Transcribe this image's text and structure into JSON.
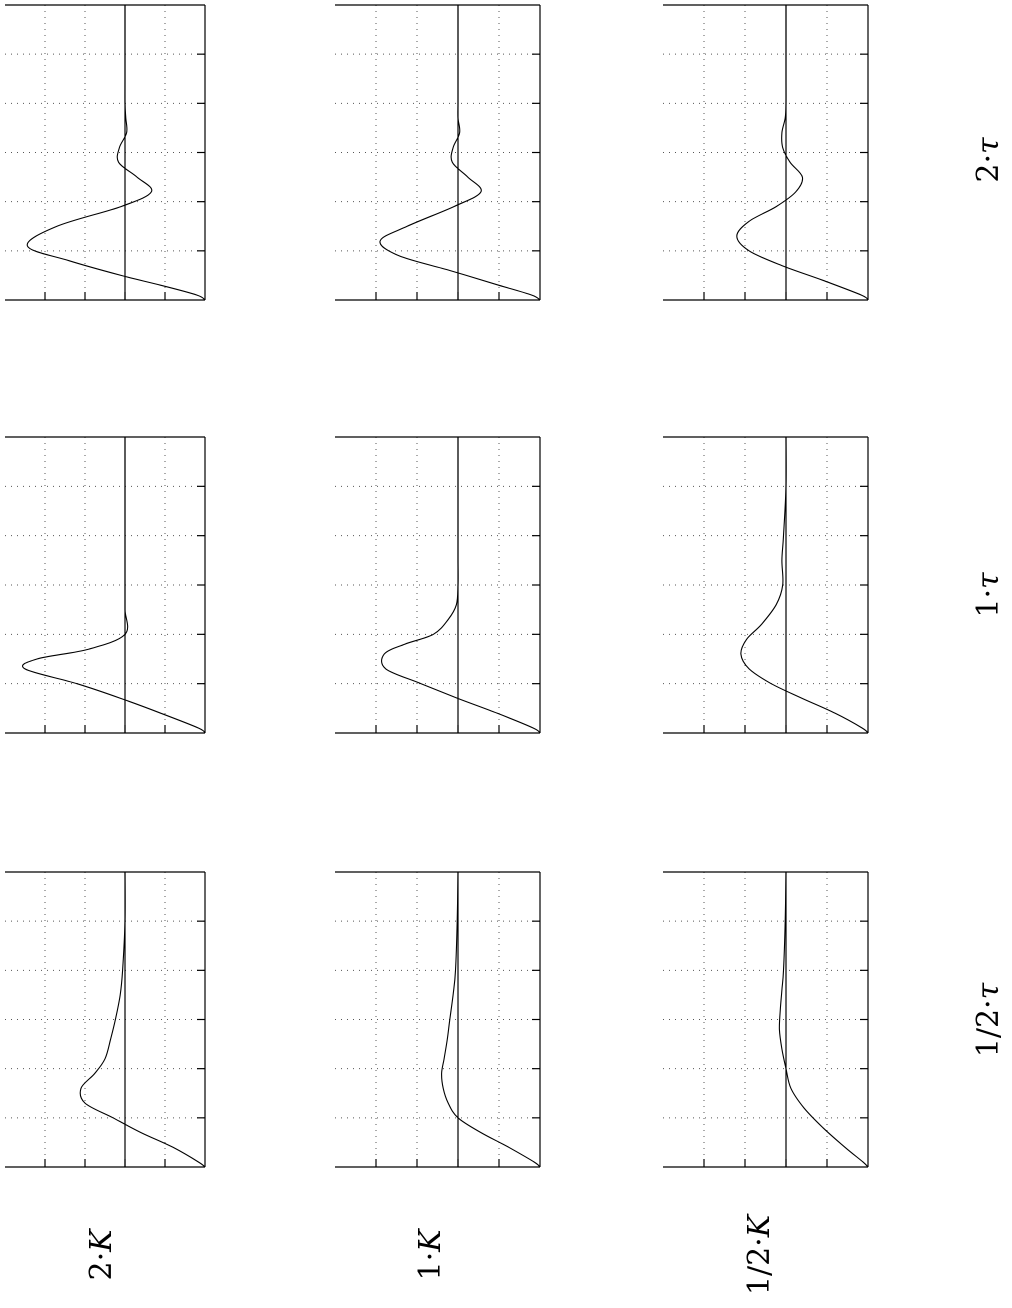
{
  "figure": {
    "row_labels": [
      {
        "num": "2",
        "sym": "K"
      },
      {
        "num": "1",
        "sym": "K"
      },
      {
        "num": "1/2",
        "sym": "K"
      }
    ],
    "col_labels": [
      {
        "num": "1/2",
        "sym": "τ"
      },
      {
        "num": "1",
        "sym": "τ"
      },
      {
        "num": "2",
        "sym": "τ"
      }
    ],
    "dot": "·"
  },
  "chart_data": [
    {
      "type": "line",
      "gain": "2·K",
      "time_constant": "1/2·τ",
      "ylim": [
        -1,
        1.5
      ],
      "xlim": [
        0,
        6
      ],
      "grid": true,
      "x": [
        0,
        0.1,
        0.3,
        0.5,
        0.8,
        1.1,
        1.5,
        1.9,
        2.2,
        2.5,
        2.8,
        3.1,
        3.4,
        3.7,
        4.0,
        4.5,
        5.0,
        5.5,
        6.0
      ],
      "y": [
        -1.0,
        -0.9,
        -0.45,
        0.05,
        0.7,
        1.22,
        0.85,
        0.05,
        -0.33,
        -0.15,
        0.08,
        0.07,
        -0.02,
        -0.01,
        0.0,
        0.0,
        0.0,
        0.0,
        0.0
      ]
    },
    {
      "type": "line",
      "gain": "2·K",
      "time_constant": "1·τ",
      "ylim": [
        -1,
        1.5
      ],
      "xlim": [
        0,
        6
      ],
      "grid": true,
      "x": [
        0,
        0.1,
        0.4,
        0.7,
        1.0,
        1.3,
        1.5,
        1.7,
        2.0,
        2.5,
        3.0,
        4.0,
        5.0,
        6.0
      ],
      "y": [
        -1.0,
        -0.92,
        -0.45,
        0.05,
        0.6,
        1.25,
        1.1,
        0.45,
        0.0,
        0.0,
        0.0,
        0.0,
        0.0,
        0.0
      ]
    },
    {
      "type": "line",
      "gain": "2·K",
      "time_constant": "2·τ",
      "ylim": [
        -1,
        1.5
      ],
      "xlim": [
        0,
        6
      ],
      "grid": true,
      "x": [
        0,
        0.1,
        0.4,
        0.7,
        1.0,
        1.3,
        1.6,
        1.9,
        2.2,
        2.6,
        3.0,
        3.5,
        4.0,
        5.0,
        6.0
      ],
      "y": [
        -1.0,
        -0.92,
        -0.6,
        -0.2,
        0.15,
        0.5,
        0.55,
        0.38,
        0.25,
        0.18,
        0.12,
        0.06,
        0.03,
        0.0,
        0.0
      ]
    },
    {
      "type": "line",
      "gain": "1·K",
      "time_constant": "1/2·τ",
      "ylim": [
        -1,
        1.5
      ],
      "xlim": [
        0,
        6
      ],
      "grid": true,
      "x": [
        0,
        0.1,
        0.3,
        0.6,
        0.9,
        1.2,
        1.5,
        1.9,
        2.2,
        2.5,
        2.8,
        3.1,
        3.4,
        3.7,
        4.0,
        4.5,
        5.0,
        5.5,
        6.0
      ],
      "y": [
        -1.0,
        -0.9,
        -0.5,
        0.1,
        0.72,
        0.95,
        0.62,
        0.05,
        -0.28,
        -0.12,
        0.07,
        0.06,
        -0.02,
        0.0,
        0.0,
        0.0,
        0.0,
        0.0,
        0.0
      ]
    },
    {
      "type": "line",
      "gain": "1·K",
      "time_constant": "1·τ",
      "ylim": [
        -1,
        1.5
      ],
      "xlim": [
        0,
        6
      ],
      "grid": true,
      "x": [
        0,
        0.1,
        0.4,
        0.7,
        1.0,
        1.3,
        1.6,
        1.8,
        2.0,
        2.3,
        2.6,
        3.0,
        3.5,
        4.0,
        5.0,
        6.0
      ],
      "y": [
        -1.0,
        -0.92,
        -0.48,
        0.0,
        0.45,
        0.88,
        0.9,
        0.65,
        0.3,
        0.12,
        0.02,
        0.0,
        0.0,
        0.0,
        0.0,
        0.0
      ]
    },
    {
      "type": "line",
      "gain": "1·K",
      "time_constant": "2·τ",
      "ylim": [
        -1,
        1.5
      ],
      "xlim": [
        0,
        6
      ],
      "grid": true,
      "x": [
        0,
        0.1,
        0.4,
        0.7,
        1.0,
        1.3,
        1.6,
        1.9,
        2.2,
        2.6,
        3.0,
        3.5,
        4.0,
        5.0,
        6.0
      ],
      "y": [
        -1.0,
        -0.93,
        -0.62,
        -0.28,
        0.0,
        0.12,
        0.18,
        0.2,
        0.17,
        0.13,
        0.1,
        0.06,
        0.03,
        0.01,
        0.0
      ]
    },
    {
      "type": "line",
      "gain": "1/2·K",
      "time_constant": "1/2·τ",
      "ylim": [
        -1,
        1.5
      ],
      "xlim": [
        0,
        6
      ],
      "grid": true,
      "x": [
        0,
        0.1,
        0.4,
        0.7,
        1.0,
        1.3,
        1.6,
        1.9,
        2.2,
        2.5,
        2.8,
        3.1,
        3.4,
        3.7,
        4.0,
        4.5,
        5.0,
        5.5,
        6.0
      ],
      "y": [
        -1.0,
        -0.92,
        -0.45,
        0.05,
        0.45,
        0.6,
        0.45,
        0.12,
        -0.12,
        -0.2,
        -0.05,
        0.04,
        0.05,
        0.01,
        0.0,
        0.0,
        0.0,
        0.0,
        0.0
      ]
    },
    {
      "type": "line",
      "gain": "1/2·K",
      "time_constant": "1·τ",
      "ylim": [
        -1,
        1.5
      ],
      "xlim": [
        0,
        6
      ],
      "grid": true,
      "x": [
        0,
        0.1,
        0.4,
        0.7,
        1.0,
        1.3,
        1.6,
        1.9,
        2.2,
        2.6,
        3.0,
        3.5,
        4.0,
        5.0,
        6.0
      ],
      "y": [
        -1.0,
        -0.93,
        -0.6,
        -0.2,
        0.18,
        0.45,
        0.55,
        0.48,
        0.3,
        0.12,
        0.04,
        0.05,
        0.03,
        0.0,
        0.0
      ]
    },
    {
      "type": "line",
      "gain": "1/2·K",
      "time_constant": "2·τ",
      "ylim": [
        -1,
        1.5
      ],
      "xlim": [
        0,
        6
      ],
      "grid": true,
      "x": [
        0,
        0.1,
        0.4,
        0.8,
        1.2,
        1.6,
        2.0,
        2.4,
        2.8,
        3.2,
        3.6,
        4.0,
        5.0,
        6.0
      ],
      "y": [
        -1.0,
        -0.94,
        -0.72,
        -0.45,
        -0.22,
        -0.06,
        0.0,
        0.05,
        0.08,
        0.07,
        0.05,
        0.03,
        0.01,
        0.0
      ]
    }
  ]
}
